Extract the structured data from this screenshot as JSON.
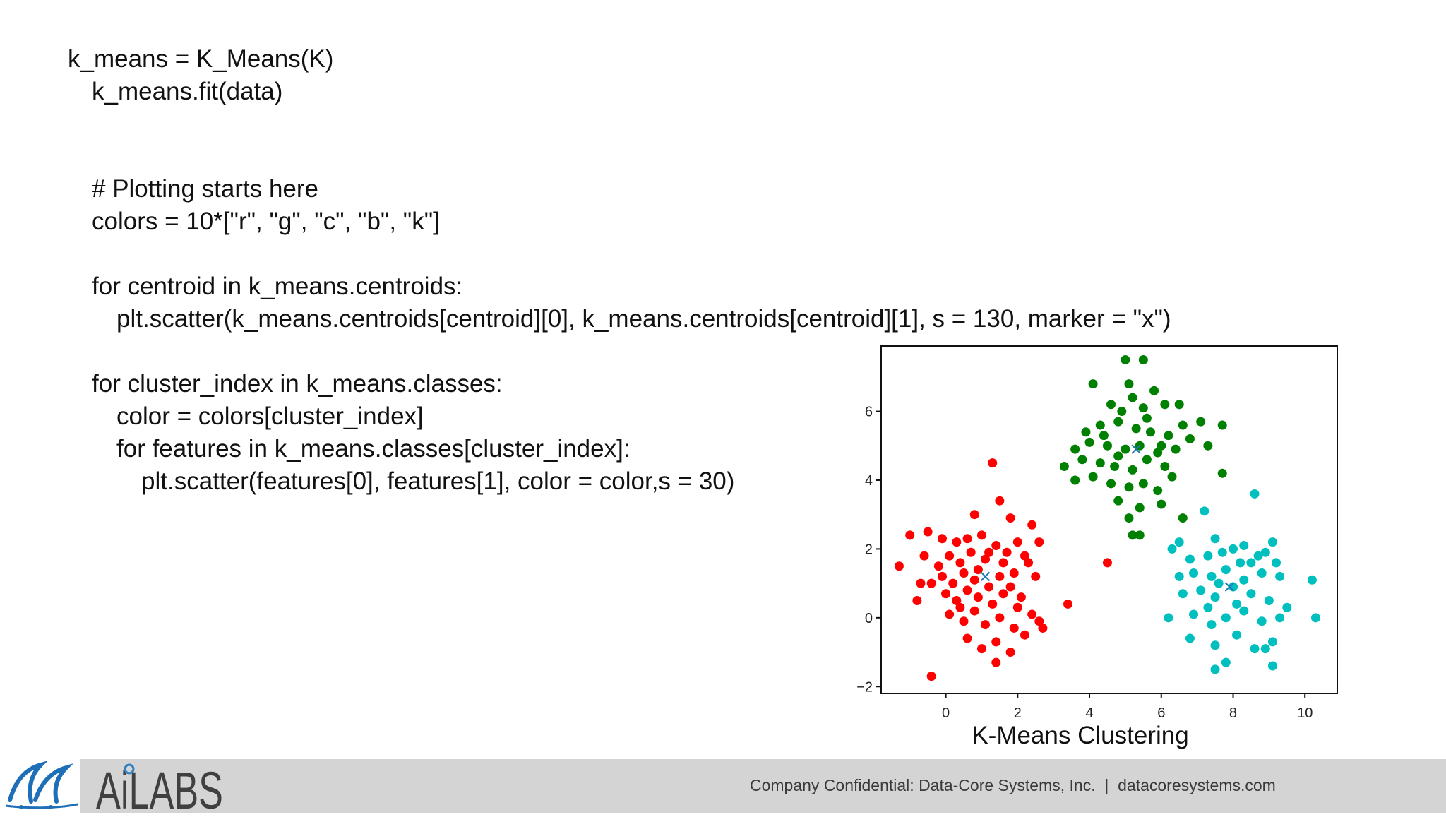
{
  "code": {
    "lines": [
      "k_means = K_Means(K)",
      "k_means.fit(data)",
      "# Plotting starts here",
      "colors = 10*[\"r\", \"g\", \"c\", \"b\", \"k\"]",
      "for centroid in k_means.centroids:",
      "plt.scatter(k_means.centroids[centroid][0], k_means.centroids[centroid][1], s = 130, marker = \"x\")",
      "for cluster_index in k_means.classes:",
      "color = colors[cluster_index]",
      "for features in k_means.classes[cluster_index]:",
      "plt.scatter(features[0], features[1], color = color,s = 30)"
    ]
  },
  "figure": {
    "caption": "K-Means Clustering"
  },
  "chart_data": {
    "type": "scatter",
    "xlim": [
      -1.8,
      10.9
    ],
    "ylim": [
      -2.2,
      7.9
    ],
    "x_ticks": [
      "0",
      "2",
      "4",
      "6",
      "8",
      "10"
    ],
    "y_ticks": [
      "6",
      "4",
      "2",
      "0",
      "−2"
    ],
    "grid": false,
    "legend": "none",
    "colors": {
      "red": "#ff0000",
      "green": "#008000",
      "cyan": "#00bfbf",
      "centroid": "#1f77b4"
    },
    "centroids": [
      {
        "x": 1.1,
        "y": 1.2,
        "marker": "x"
      },
      {
        "x": 5.3,
        "y": 4.9,
        "marker": "x"
      },
      {
        "x": 7.9,
        "y": 0.9,
        "marker": "x"
      }
    ],
    "series": [
      {
        "color": "red",
        "points": [
          [
            1.3,
            4.5
          ],
          [
            1.5,
            3.4
          ],
          [
            0.8,
            3.0
          ],
          [
            1.8,
            2.9
          ],
          [
            2.4,
            2.7
          ],
          [
            2.6,
            2.2
          ],
          [
            -1.0,
            2.4
          ],
          [
            -0.5,
            2.5
          ],
          [
            -0.1,
            2.3
          ],
          [
            0.3,
            2.2
          ],
          [
            0.6,
            2.3
          ],
          [
            1.0,
            2.4
          ],
          [
            1.4,
            2.1
          ],
          [
            2.0,
            2.2
          ],
          [
            2.2,
            1.8
          ],
          [
            -1.3,
            1.5
          ],
          [
            -0.6,
            1.8
          ],
          [
            -0.2,
            1.5
          ],
          [
            0.1,
            1.8
          ],
          [
            0.4,
            1.6
          ],
          [
            0.7,
            1.9
          ],
          [
            1.1,
            1.7
          ],
          [
            1.6,
            1.6
          ],
          [
            1.9,
            1.3
          ],
          [
            2.3,
            1.6
          ],
          [
            -0.4,
            1.0
          ],
          [
            -0.1,
            1.2
          ],
          [
            0.2,
            1.0
          ],
          [
            0.5,
            1.3
          ],
          [
            0.8,
            1.1
          ],
          [
            1.2,
            0.9
          ],
          [
            1.5,
            1.2
          ],
          [
            1.8,
            0.9
          ],
          [
            2.1,
            0.6
          ],
          [
            2.5,
            1.2
          ],
          [
            3.4,
            0.4
          ],
          [
            -0.8,
            0.5
          ],
          [
            0.0,
            0.7
          ],
          [
            0.3,
            0.5
          ],
          [
            0.6,
            0.8
          ],
          [
            0.9,
            0.6
          ],
          [
            1.3,
            0.4
          ],
          [
            1.6,
            0.7
          ],
          [
            2.0,
            0.3
          ],
          [
            2.4,
            0.1
          ],
          [
            0.1,
            0.1
          ],
          [
            0.5,
            -0.1
          ],
          [
            0.8,
            0.2
          ],
          [
            1.1,
            -0.2
          ],
          [
            1.5,
            0.0
          ],
          [
            1.9,
            -0.3
          ],
          [
            2.2,
            -0.5
          ],
          [
            2.7,
            -0.3
          ],
          [
            0.6,
            -0.6
          ],
          [
            1.0,
            -0.9
          ],
          [
            1.4,
            -0.7
          ],
          [
            1.8,
            -1.0
          ],
          [
            1.4,
            -1.3
          ],
          [
            -0.4,
            -1.7
          ],
          [
            -0.7,
            1.0
          ],
          [
            1.7,
            1.9
          ],
          [
            0.9,
            1.4
          ],
          [
            0.4,
            0.3
          ],
          [
            2.6,
            -0.1
          ],
          [
            1.2,
            1.9
          ],
          [
            4.5,
            1.6
          ]
        ]
      },
      {
        "color": "green",
        "points": [
          [
            5.0,
            7.5
          ],
          [
            5.5,
            7.5
          ],
          [
            4.1,
            6.8
          ],
          [
            5.1,
            6.8
          ],
          [
            5.8,
            6.6
          ],
          [
            4.6,
            6.2
          ],
          [
            5.2,
            6.4
          ],
          [
            4.9,
            6.0
          ],
          [
            5.5,
            6.1
          ],
          [
            6.1,
            6.2
          ],
          [
            6.5,
            6.2
          ],
          [
            7.1,
            5.7
          ],
          [
            7.7,
            5.6
          ],
          [
            3.9,
            5.4
          ],
          [
            4.3,
            5.6
          ],
          [
            4.8,
            5.7
          ],
          [
            5.3,
            5.5
          ],
          [
            5.7,
            5.4
          ],
          [
            6.2,
            5.3
          ],
          [
            6.6,
            5.6
          ],
          [
            7.3,
            5.0
          ],
          [
            3.6,
            4.9
          ],
          [
            4.0,
            5.1
          ],
          [
            4.5,
            5.0
          ],
          [
            5.0,
            4.9
          ],
          [
            5.4,
            5.0
          ],
          [
            5.9,
            4.8
          ],
          [
            6.4,
            4.9
          ],
          [
            6.8,
            5.2
          ],
          [
            3.3,
            4.4
          ],
          [
            3.8,
            4.6
          ],
          [
            4.3,
            4.5
          ],
          [
            4.7,
            4.4
          ],
          [
            5.2,
            4.3
          ],
          [
            5.6,
            4.6
          ],
          [
            6.1,
            4.4
          ],
          [
            6.3,
            4.1
          ],
          [
            7.7,
            4.2
          ],
          [
            3.6,
            4.0
          ],
          [
            4.1,
            4.1
          ],
          [
            4.6,
            3.9
          ],
          [
            5.1,
            3.8
          ],
          [
            5.5,
            3.9
          ],
          [
            5.9,
            3.7
          ],
          [
            4.8,
            3.4
          ],
          [
            5.4,
            3.2
          ],
          [
            6.0,
            3.3
          ],
          [
            5.1,
            2.9
          ],
          [
            5.2,
            2.4
          ],
          [
            5.4,
            2.4
          ],
          [
            6.6,
            2.9
          ],
          [
            4.4,
            5.3
          ],
          [
            5.6,
            5.8
          ],
          [
            6.0,
            5.0
          ],
          [
            4.8,
            4.7
          ]
        ]
      },
      {
        "color": "cyan",
        "points": [
          [
            8.6,
            3.6
          ],
          [
            7.2,
            3.1
          ],
          [
            6.5,
            2.2
          ],
          [
            7.5,
            2.3
          ],
          [
            8.0,
            2.0
          ],
          [
            8.3,
            2.1
          ],
          [
            9.1,
            2.2
          ],
          [
            6.8,
            1.7
          ],
          [
            7.3,
            1.8
          ],
          [
            7.7,
            1.9
          ],
          [
            8.2,
            1.6
          ],
          [
            8.7,
            1.8
          ],
          [
            9.2,
            1.6
          ],
          [
            6.5,
            1.2
          ],
          [
            6.9,
            1.3
          ],
          [
            7.4,
            1.2
          ],
          [
            7.8,
            1.4
          ],
          [
            8.3,
            1.1
          ],
          [
            8.8,
            1.3
          ],
          [
            9.3,
            1.2
          ],
          [
            10.2,
            1.1
          ],
          [
            6.6,
            0.7
          ],
          [
            7.1,
            0.8
          ],
          [
            7.5,
            0.6
          ],
          [
            8.0,
            0.9
          ],
          [
            8.5,
            0.7
          ],
          [
            9.0,
            0.5
          ],
          [
            9.5,
            0.3
          ],
          [
            6.9,
            0.1
          ],
          [
            7.3,
            0.3
          ],
          [
            7.8,
            0.0
          ],
          [
            8.3,
            0.2
          ],
          [
            8.8,
            -0.1
          ],
          [
            9.3,
            0.0
          ],
          [
            10.3,
            0.0
          ],
          [
            6.2,
            0.0
          ],
          [
            6.8,
            -0.6
          ],
          [
            7.5,
            -0.8
          ],
          [
            8.1,
            -0.5
          ],
          [
            8.6,
            -0.9
          ],
          [
            9.1,
            -0.7
          ],
          [
            7.8,
            -1.3
          ],
          [
            7.5,
            -1.5
          ],
          [
            9.1,
            -1.4
          ],
          [
            8.9,
            -0.9
          ],
          [
            7.4,
            -0.2
          ],
          [
            8.5,
            1.6
          ],
          [
            6.3,
            2.0
          ],
          [
            8.9,
            1.9
          ],
          [
            7.6,
            1.0
          ],
          [
            8.1,
            0.4
          ]
        ]
      }
    ]
  },
  "footer": {
    "logo_text": "AiLABS",
    "confidential": "Company Confidential: Data-Core Systems, Inc.  |  datacoresystems.com"
  }
}
